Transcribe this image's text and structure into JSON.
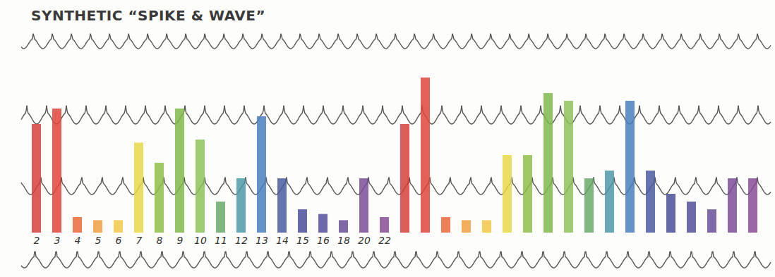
{
  "chart_data": {
    "type": "bar",
    "title": "SYNTHETIC “SPIKE & WAVE”",
    "categories": [
      "2",
      "3",
      "4",
      "5",
      "6",
      "7",
      "8",
      "9",
      "10",
      "11",
      "12",
      "13",
      "14",
      "15",
      "16",
      "18",
      "20",
      "22",
      null,
      null,
      null,
      null,
      null,
      null,
      null,
      null,
      null,
      null,
      null,
      null,
      null,
      null,
      null,
      null,
      null,
      null
    ],
    "values": [
      70,
      80,
      10,
      8,
      8,
      58,
      45,
      80,
      60,
      20,
      35,
      75,
      35,
      15,
      12,
      8,
      35,
      10,
      70,
      100,
      10,
      8,
      8,
      50,
      50,
      90,
      85,
      35,
      40,
      85,
      40,
      25,
      20,
      15,
      35,
      35
    ],
    "colors": [
      "#d8403a",
      "#e0453a",
      "#ea6a3a",
      "#f0a040",
      "#f2c848",
      "#e8d84a",
      "#8fbf4a",
      "#7fb84a",
      "#8ec25a",
      "#6aaa6a",
      "#4f9aa8",
      "#4a7fc0",
      "#4a5aa0",
      "#4a4f98",
      "#55509a",
      "#6a4f9a",
      "#7a4e98",
      "#8a4e96",
      "#d8403a",
      "#e0453a",
      "#ea6a3a",
      "#f0a040",
      "#f2c848",
      "#e8d84a",
      "#8fbf4a",
      "#7fb84a",
      "#8ec25a",
      "#6aaa6a",
      "#4f9aa8",
      "#4a7fc0",
      "#4a5aa0",
      "#4a4f98",
      "#55509a",
      "#6a4f9a",
      "#7a4e98",
      "#8a4e96"
    ],
    "ylim": [
      0,
      100
    ],
    "tick_labels": "x"
  }
}
